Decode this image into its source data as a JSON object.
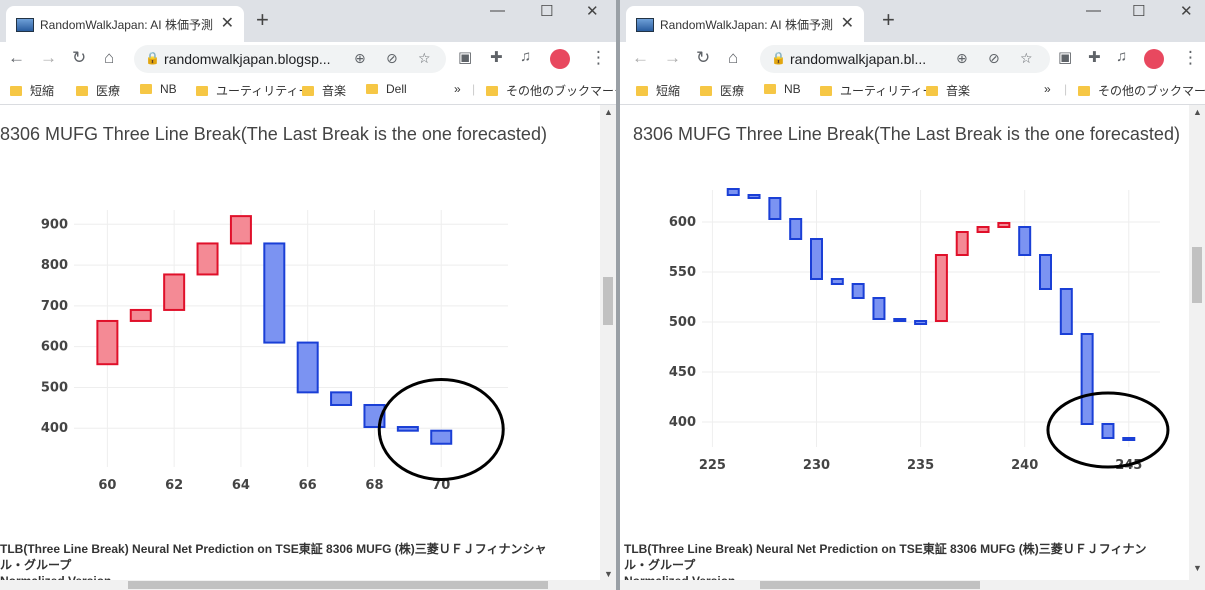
{
  "left": {
    "tab_title": "RandomWalkJapan: AI 株価予測",
    "url": "randomwalkjapan.blogsp...",
    "bookmarks": [
      "短縮",
      "医療",
      "NB",
      "ユーティリティー",
      "音楽",
      "Dell"
    ],
    "other_bookmarks": "その他のブックマーク",
    "chart_title": "8306 MUFG Three Line Break(The Last Break is the one forecasted)",
    "caption_line1": "TLB(Three Line Break) Neural Net Prediction on TSE東証 8306 MUFG (株)三菱ＵＦＪフィナンシャ",
    "caption_line2": "ル・グループ",
    "caption_line3": "Normalized Version"
  },
  "right": {
    "tab_title": "RandomWalkJapan: AI 株価予測",
    "url": "randomwalkjapan.bl...",
    "bookmarks": [
      "短縮",
      "医療",
      "NB",
      "ユーティリティー",
      "音楽"
    ],
    "other_bookmarks": "その他のブックマーク",
    "chart_title": "8306 MUFG Three Line Break(The Last Break is the one forecasted)",
    "caption_line1": "TLB(Three Line Break) Neural Net Prediction on TSE東証 8306 MUFG (株)三菱ＵＦＪフィナン",
    "caption_line2": "ル・グループ",
    "caption_line3": "Normalized Version"
  },
  "colors": {
    "up_fill": "#f48a95",
    "up_line": "#e0102a",
    "down_fill": "#7b93f2",
    "down_line": "#1a3fd6",
    "grid": "#eeeeee"
  },
  "chart_data": [
    {
      "type": "candlestick",
      "title": "8306 MUFG Three Line Break(The Last Break is the one forecasted)",
      "xlim": [
        59,
        72
      ],
      "ylim": [
        305,
        935
      ],
      "x_ticks": [
        60,
        62,
        64,
        66,
        68,
        70
      ],
      "y_ticks": [
        400,
        500,
        600,
        700,
        800,
        900
      ],
      "annotation": "circle around forecasted last breaks (x 69-71)",
      "bricks": [
        {
          "x": 60,
          "open": 557,
          "close": 663
        },
        {
          "x": 61,
          "open": 663,
          "close": 690
        },
        {
          "x": 62,
          "open": 690,
          "close": 777
        },
        {
          "x": 63,
          "open": 777,
          "close": 853
        },
        {
          "x": 64,
          "open": 853,
          "close": 920
        },
        {
          "x": 65,
          "open": 853,
          "close": 610
        },
        {
          "x": 66,
          "open": 610,
          "close": 488
        },
        {
          "x": 67,
          "open": 488,
          "close": 457
        },
        {
          "x": 68,
          "open": 457,
          "close": 403
        },
        {
          "x": 69,
          "open": 403,
          "close": 394
        },
        {
          "x": 70,
          "open": 394,
          "close": 362
        }
      ]
    },
    {
      "type": "candlestick",
      "title": "8306 MUFG Three Line Break(The Last Break is the one forecasted)",
      "xlim": [
        224.5,
        246.5
      ],
      "ylim": [
        375,
        632
      ],
      "x_ticks": [
        225,
        230,
        235,
        240,
        245
      ],
      "y_ticks": [
        400,
        450,
        500,
        550,
        600
      ],
      "annotation": "circle around forecasted last breaks (x 243-245)",
      "bricks": [
        {
          "x": 226,
          "open": 633,
          "close": 627
        },
        {
          "x": 227,
          "open": 627,
          "close": 624
        },
        {
          "x": 228,
          "open": 624,
          "close": 603
        },
        {
          "x": 229,
          "open": 603,
          "close": 583
        },
        {
          "x": 230,
          "open": 583,
          "close": 543
        },
        {
          "x": 231,
          "open": 543,
          "close": 538
        },
        {
          "x": 232,
          "open": 538,
          "close": 524
        },
        {
          "x": 233,
          "open": 524,
          "close": 503
        },
        {
          "x": 234,
          "open": 503,
          "close": 501
        },
        {
          "x": 235,
          "open": 501,
          "close": 498
        },
        {
          "x": 236,
          "open": 501,
          "close": 567
        },
        {
          "x": 237,
          "open": 567,
          "close": 590
        },
        {
          "x": 238,
          "open": 590,
          "close": 595
        },
        {
          "x": 239,
          "open": 595,
          "close": 599
        },
        {
          "x": 240,
          "open": 595,
          "close": 567
        },
        {
          "x": 241,
          "open": 567,
          "close": 533
        },
        {
          "x": 242,
          "open": 533,
          "close": 488
        },
        {
          "x": 243,
          "open": 488,
          "close": 398
        },
        {
          "x": 244,
          "open": 398,
          "close": 384
        },
        {
          "x": 245,
          "open": 384,
          "close": 382
        }
      ]
    }
  ]
}
